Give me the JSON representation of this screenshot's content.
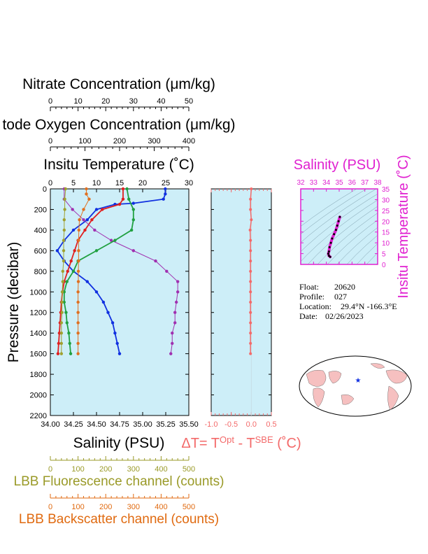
{
  "colors": {
    "panel_bg": "#cdeef8",
    "nitrate": "#000000",
    "oxygen": "#000000",
    "temperature": "#000000",
    "fluorescence": "#9a9a28",
    "backscatter": "#e06a10",
    "delta_t": "#f36a6a",
    "salinity_ts": "#e020d0",
    "profile_blue": "#1030e0",
    "profile_red": "#e02020",
    "profile_green": "#20a040",
    "profile_purple": "#a030b0",
    "profile_olive": "#a0a030",
    "profile_orange": "#e07020"
  },
  "main_panel": {
    "nitrate_title": "Nitrate Concentration (μm/kg)",
    "nitrate_ticks": [
      "0",
      "10",
      "20",
      "30",
      "40",
      "50"
    ],
    "oxygen_title": "tode Oxygen Concentration (μm/kg)",
    "oxygen_ticks": [
      "0",
      "100",
      "200",
      "300",
      "400"
    ],
    "temperature_title": "Insitu Temperature (˚C)",
    "temperature_ticks": [
      "0",
      "5",
      "10",
      "15",
      "20",
      "25",
      "30"
    ],
    "pressure_label": "Pressure (decibar)",
    "pressure_ticks": [
      "0",
      "200",
      "400",
      "600",
      "800",
      "1000",
      "1200",
      "1400",
      "1600",
      "1800",
      "2000",
      "2200"
    ],
    "salinity_ticks": [
      "34.00",
      "34.25",
      "34.50",
      "34.75",
      "35.00",
      "35.25",
      "35.50"
    ],
    "salinity_title": "Salinity (PSU)",
    "fluorescence_ticks": [
      "0",
      "100",
      "200",
      "300",
      "400",
      "500"
    ],
    "fluorescence_title": "LBB Fluorescence channel (counts)",
    "backscatter_ticks": [
      "0",
      "100",
      "200",
      "300",
      "400",
      "500"
    ],
    "backscatter_title": "LBB Backscatter channel (counts)"
  },
  "delta_panel": {
    "title_prefix": "ΔT= T",
    "title_sup1": "Opt",
    "title_mid": " - T",
    "title_sup2": "SBE",
    "title_suffix": " (˚C)",
    "ticks": [
      "-1.0",
      "-0.5",
      "0.0",
      "0.5"
    ]
  },
  "ts_panel": {
    "salinity_title": "Salinity (PSU)",
    "salinity_ticks": [
      "32",
      "33",
      "34",
      "35",
      "36",
      "37",
      "38"
    ],
    "temperature_title": "Insitu Temperature (˚C)",
    "temperature_ticks": [
      "0",
      "5",
      "10",
      "15",
      "20",
      "25",
      "30",
      "35"
    ]
  },
  "float_info": {
    "float_label": "Float:",
    "float_value": "20620",
    "profile_label": "Profile:",
    "profile_value": "027",
    "location_label": "Location:",
    "location_value": "29.4°N  -166.3°E",
    "date_label": "Date:",
    "date_value": "02/26/2023"
  },
  "chart_data": [
    {
      "type": "line",
      "name": "main-profile",
      "y_axis": "Pressure (decibar)",
      "ylim": [
        2200,
        0
      ],
      "series": [
        {
          "axis": "temperature",
          "range": [
            0,
            30
          ],
          "color": "blue",
          "points": [
            [
              24.9,
              0
            ],
            [
              24.9,
              50
            ],
            [
              24.5,
              100
            ],
            [
              18,
              140
            ],
            [
              14,
              150
            ],
            [
              10,
              200
            ],
            [
              8,
              300
            ],
            [
              5,
              400
            ],
            [
              3,
              500
            ],
            [
              1.5,
              600
            ],
            [
              3,
              700
            ],
            [
              5,
              800
            ],
            [
              8,
              900
            ],
            [
              10,
              1000
            ],
            [
              11.5,
              1100
            ],
            [
              12.5,
              1200
            ],
            [
              13.5,
              1300
            ],
            [
              14,
              1400
            ],
            [
              14.5,
              1500
            ],
            [
              15,
              1600
            ]
          ]
        },
        {
          "axis": "oxygen",
          "range": [
            0,
            400
          ],
          "color": "red",
          "points": [
            [
              210,
              0
            ],
            [
              210,
              100
            ],
            [
              200,
              150
            ],
            [
              150,
              200
            ],
            [
              120,
              300
            ],
            [
              100,
              400
            ],
            [
              80,
              500
            ],
            [
              70,
              600
            ],
            [
              60,
              700
            ],
            [
              50,
              800
            ],
            [
              40,
              900
            ],
            [
              35,
              1000
            ],
            [
              32,
              1100
            ],
            [
              30,
              1200
            ],
            [
              28,
              1300
            ],
            [
              26,
              1400
            ],
            [
              24,
              1500
            ],
            [
              22,
              1600
            ]
          ]
        },
        {
          "axis": "nitrate",
          "range": [
            0,
            50
          ],
          "color": "purple",
          "points": [
            [
              5,
              0
            ],
            [
              5,
              100
            ],
            [
              8,
              200
            ],
            [
              12,
              300
            ],
            [
              16,
              400
            ],
            [
              22,
              500
            ],
            [
              30,
              600
            ],
            [
              38,
              700
            ],
            [
              42,
              800
            ],
            [
              46,
              900
            ],
            [
              46,
              1000
            ],
            [
              45.5,
              1100
            ],
            [
              45,
              1200
            ],
            [
              45,
              1300
            ],
            [
              44,
              1400
            ],
            [
              44,
              1500
            ],
            [
              43.5,
              1600
            ]
          ]
        },
        {
          "axis": "salinity",
          "range": [
            34.0,
            35.5
          ],
          "color": "green",
          "points": [
            [
              34.83,
              0
            ],
            [
              34.85,
              100
            ],
            [
              34.9,
              200
            ],
            [
              34.9,
              300
            ],
            [
              34.88,
              400
            ],
            [
              34.7,
              500
            ],
            [
              34.5,
              600
            ],
            [
              34.3,
              700
            ],
            [
              34.25,
              800
            ],
            [
              34.18,
              900
            ],
            [
              34.15,
              1000
            ],
            [
              34.15,
              1100
            ],
            [
              34.17,
              1200
            ],
            [
              34.18,
              1300
            ],
            [
              34.2,
              1400
            ],
            [
              34.21,
              1500
            ],
            [
              34.22,
              1600
            ]
          ]
        },
        {
          "axis": "fluorescence",
          "range": [
            0,
            500
          ],
          "color": "olive",
          "points": [
            [
              55,
              0
            ],
            [
              52,
              100
            ],
            [
              52,
              200
            ],
            [
              50,
              300
            ],
            [
              50,
              400
            ],
            [
              48,
              500
            ],
            [
              48,
              600
            ],
            [
              48,
              700
            ],
            [
              45,
              800
            ],
            [
              45,
              900
            ],
            [
              43,
              1000
            ],
            [
              42,
              1100
            ],
            [
              42,
              1200
            ],
            [
              40,
              1300
            ],
            [
              40,
              1400
            ],
            [
              40,
              1500
            ],
            [
              40,
              1600
            ]
          ]
        },
        {
          "axis": "backscatter",
          "range": [
            0,
            500
          ],
          "color": "orange",
          "points": [
            [
              130,
              0
            ],
            [
              130,
              50
            ],
            [
              140,
              100
            ],
            [
              120,
              200
            ],
            [
              105,
              300
            ],
            [
              103,
              400
            ],
            [
              102,
              500
            ],
            [
              102,
              600
            ],
            [
              102,
              700
            ],
            [
              101,
              800
            ],
            [
              101,
              900
            ],
            [
              100,
              1000
            ],
            [
              100,
              1100
            ],
            [
              100,
              1200
            ],
            [
              100,
              1300
            ],
            [
              100,
              1400
            ],
            [
              100,
              1500
            ],
            [
              100,
              1600
            ]
          ]
        }
      ]
    },
    {
      "type": "line",
      "name": "delta-t",
      "xlim": [
        -1.0,
        0.5
      ],
      "ylim": [
        2200,
        0
      ],
      "values": [
        [
          0.0,
          0
        ],
        [
          -0.02,
          100
        ],
        [
          -0.02,
          200
        ],
        [
          0.0,
          300
        ],
        [
          -0.03,
          400
        ],
        [
          -0.02,
          500
        ],
        [
          -0.02,
          600
        ],
        [
          -0.02,
          700
        ],
        [
          -0.02,
          800
        ],
        [
          -0.02,
          900
        ],
        [
          -0.02,
          1000
        ],
        [
          -0.02,
          1100
        ],
        [
          -0.02,
          1200
        ],
        [
          -0.02,
          1300
        ],
        [
          -0.02,
          1400
        ],
        [
          -0.02,
          1500
        ],
        [
          -0.02,
          1600
        ]
      ]
    },
    {
      "type": "scatter",
      "name": "ts-diagram",
      "xlim": [
        32,
        38
      ],
      "ylim": [
        0,
        35
      ],
      "points": [
        [
          35.05,
          22
        ],
        [
          34.95,
          20
        ],
        [
          34.85,
          18
        ],
        [
          34.75,
          16
        ],
        [
          34.6,
          14
        ],
        [
          34.45,
          12
        ],
        [
          34.35,
          10
        ],
        [
          34.25,
          8
        ],
        [
          34.2,
          6
        ],
        [
          34.15,
          5
        ],
        [
          34.2,
          4
        ],
        [
          34.3,
          3.5
        ]
      ]
    }
  ]
}
